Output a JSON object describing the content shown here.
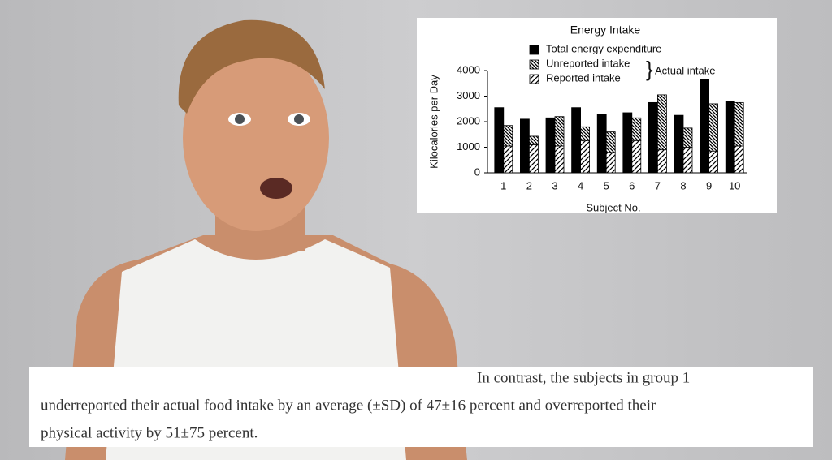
{
  "chart_data": {
    "type": "grouped_stacked_bar",
    "title": "Energy Intake",
    "xlabel": "Subject No.",
    "ylabel": "Kilocalories per Day",
    "categories": [
      "1",
      "2",
      "3",
      "4",
      "5",
      "6",
      "7",
      "8",
      "9",
      "10"
    ],
    "series": [
      {
        "name": "Total energy expenditure",
        "color": "#000000",
        "hatch": null,
        "stack": "tee",
        "values": [
          2550,
          2100,
          2150,
          2550,
          2300,
          2350,
          2750,
          2250,
          3650,
          2800
        ]
      },
      {
        "name": "Unreported intake",
        "color": "#000000",
        "hatch": "backslash",
        "stack": "intake",
        "values": [
          800,
          330,
          1150,
          550,
          800,
          900,
          2150,
          750,
          1850,
          1700
        ]
      },
      {
        "name": "Reported intake",
        "color": "#000000",
        "hatch": "slash",
        "stack": "intake",
        "values": [
          1050,
          1100,
          1050,
          1250,
          800,
          1250,
          900,
          1000,
          850,
          1050
        ]
      }
    ],
    "annotation": "Actual intake",
    "ylim": [
      0,
      4000
    ],
    "yticks": [
      0,
      1000,
      2000,
      3000,
      4000
    ],
    "grid": false
  },
  "caption": {
    "lines": [
      "In contrast, the subjects in group 1",
      "underreported their actual food intake by an average (±SD) of 47±16 percent and overreported their",
      "physical activity by 51±75 percent."
    ]
  }
}
